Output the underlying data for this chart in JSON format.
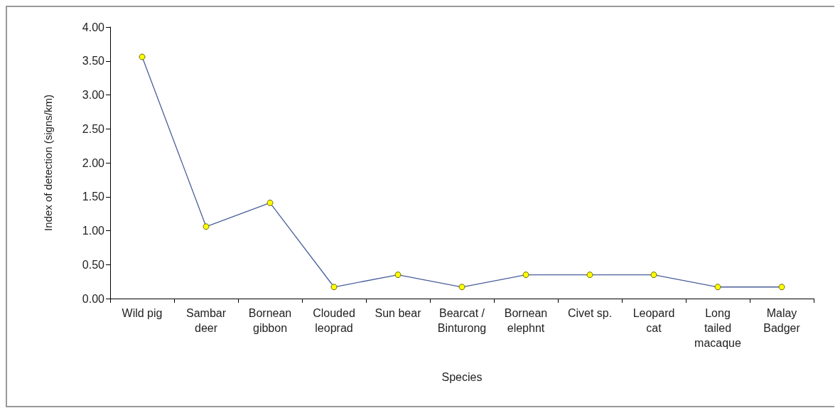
{
  "chart_data": {
    "type": "line",
    "categories": [
      "Wild pig",
      "Sambar\ndeer",
      "Bornean\ngibbon",
      "Clouded\nleoprad",
      "Sun bear",
      "Bearcat /\nBinturong",
      "Bornean\nelephnt",
      "Civet sp.",
      "Leopard\ncat",
      "Long\ntailed\nmacaque",
      "Malay\nBadger"
    ],
    "series": [
      {
        "color": "#4a5f9a",
        "values": [
          3.56,
          1.06,
          1.41,
          0.17,
          0.35,
          0.17,
          0.35,
          0.35,
          0.35,
          0.17,
          0.17
        ]
      }
    ],
    "xlabel": "Species",
    "ylabel": "Index of detection (signs/km)",
    "ylim": [
      0,
      4
    ],
    "yticks": [
      {
        "value": 0,
        "label": "0.00"
      },
      {
        "value": 0.5,
        "label": "0.50"
      },
      {
        "value": 1,
        "label": "1.00"
      },
      {
        "value": 1.5,
        "label": "1.50"
      },
      {
        "value": 2,
        "label": "2.00"
      },
      {
        "value": 2.5,
        "label": "2.50"
      },
      {
        "value": 3,
        "label": "3.00"
      },
      {
        "value": 3.5,
        "label": "3.50"
      },
      {
        "value": 4,
        "label": "4.00"
      }
    ],
    "marker": "circle",
    "grid": false
  }
}
